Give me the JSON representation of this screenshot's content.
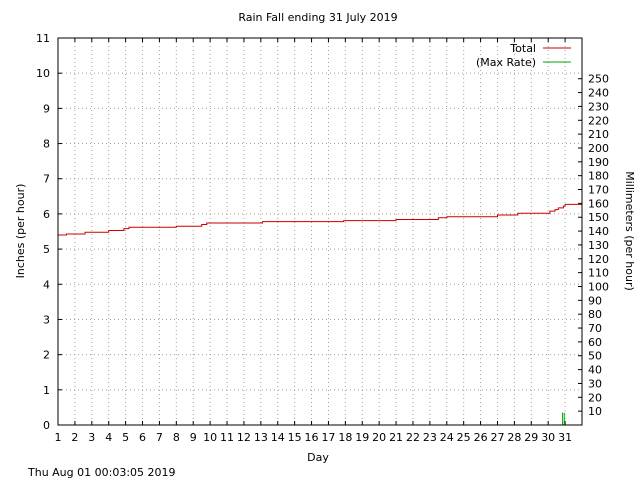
{
  "chart_data": {
    "type": "line",
    "title": "Rain Fall ending 31 July 2019",
    "xlabel": "Day",
    "ylabel": "Inches (per hour)",
    "y2label": "Millimeters (per hour)",
    "footer": "Thu Aug 01 00:03:05 2019",
    "xlim": [
      1,
      32
    ],
    "ylim": [
      0,
      11
    ],
    "y2lim": [
      0,
      279.4
    ],
    "x_ticks": [
      "1",
      "2",
      "3",
      "4",
      "5",
      "6",
      "7",
      "8",
      "9",
      "10",
      "11",
      "12",
      "13",
      "14",
      "15",
      "16",
      "17",
      "18",
      "19",
      "20",
      "21",
      "22",
      "23",
      "24",
      "25",
      "26",
      "27",
      "28",
      "29",
      "30",
      "31"
    ],
    "y_ticks": [
      "0",
      "1",
      "2",
      "3",
      "4",
      "5",
      "6",
      "7",
      "8",
      "9",
      "10",
      "11"
    ],
    "y2_ticks": [
      "10",
      "20",
      "30",
      "40",
      "50",
      "60",
      "70",
      "80",
      "90",
      "100",
      "110",
      "120",
      "130",
      "140",
      "150",
      "160",
      "170",
      "180",
      "190",
      "200",
      "210",
      "220",
      "230",
      "240",
      "250"
    ],
    "grid": true,
    "legend_position": "top-right",
    "series": [
      {
        "name": "Total",
        "color": "#cc0000",
        "style": "step",
        "x": [
          1,
          1.5,
          2.6,
          4,
          4.9,
          5.2,
          8.0,
          9.5,
          9.8,
          13.1,
          17.9,
          21.0,
          23.5,
          24.0,
          27.0,
          28.2,
          30.1,
          30.4,
          30.6,
          30.9,
          31.0,
          32.0
        ],
        "y": [
          5.4,
          5.43,
          5.48,
          5.53,
          5.58,
          5.62,
          5.65,
          5.7,
          5.74,
          5.78,
          5.81,
          5.84,
          5.89,
          5.92,
          5.97,
          6.02,
          6.08,
          6.12,
          6.17,
          6.22,
          6.27,
          6.3
        ]
      },
      {
        "name": "(Max Rate)",
        "color": "#00aa00",
        "style": "impulse",
        "x": [
          30.85,
          30.95
        ],
        "y": [
          0.35,
          0.35
        ]
      }
    ]
  }
}
